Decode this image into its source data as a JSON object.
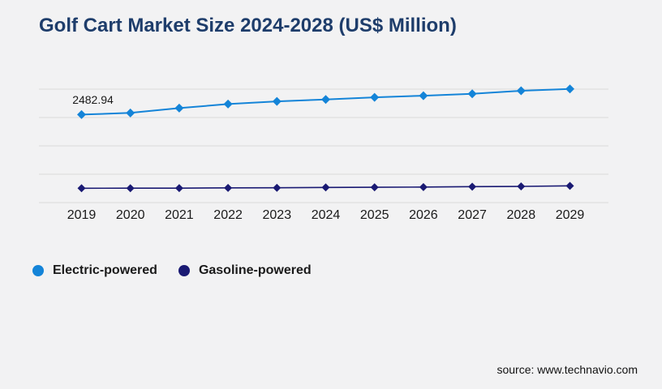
{
  "header": {
    "title": "Golf Cart Market Size 2024-2028 (US$ Million)",
    "title_color": "#1e3d6b"
  },
  "footer": {
    "source": "source: www.technavio.com"
  },
  "colors": {
    "background": "#f2f2f3",
    "gridline": "#d9d9d9",
    "electric": "#1484d8",
    "gasoline": "#1a1a73",
    "tick_label": "#1a1a1a",
    "annotation": "#1a1a1a"
  },
  "chart_data": {
    "type": "line",
    "title": "Golf Cart Market Size 2024-2028 (US$ Million)",
    "xlabel": "",
    "ylabel": "",
    "categories": [
      "2019",
      "2020",
      "2021",
      "2022",
      "2023",
      "2024",
      "2025",
      "2026",
      "2027",
      "2028",
      "2029"
    ],
    "series": [
      {
        "name": "Electric-powered",
        "color": "#1484d8",
        "marker": "diamond",
        "values": [
          2482.94,
          2530,
          2665,
          2780,
          2855,
          2910,
          2970,
          3015,
          3070,
          3155,
          3205
        ]
      },
      {
        "name": "Gasoline-powered",
        "color": "#1a1a73",
        "marker": "diamond",
        "values": [
          405,
          406,
          408,
          415,
          418,
          428,
          432,
          438,
          450,
          458,
          472
        ]
      }
    ],
    "annotations": [
      {
        "series": "Electric-powered",
        "x": "2019",
        "label": "2482.94"
      }
    ],
    "ylim": [
      0,
      3200
    ],
    "gridline_count": 5,
    "grid": true,
    "y_axis_labels_shown": false,
    "legend_position": "bottom-left"
  }
}
